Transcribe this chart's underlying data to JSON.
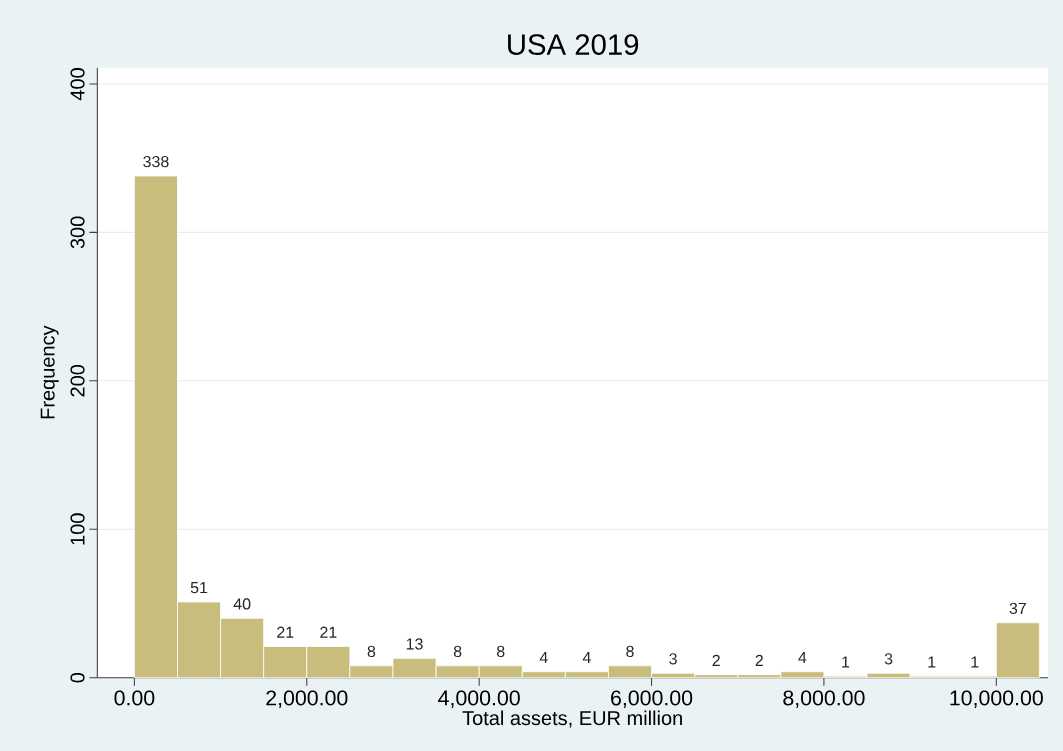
{
  "chart_data": {
    "type": "histogram",
    "title": "USA 2019",
    "xlabel": "Total assets, EUR million",
    "ylabel": "Frequency",
    "bins": [
      0,
      500,
      1000,
      1500,
      2000,
      2500,
      3000,
      3500,
      4000,
      4500,
      5000,
      5500,
      6000,
      6500,
      7000,
      7500,
      8000,
      8500,
      9000,
      9500,
      10000,
      10500
    ],
    "values": [
      338,
      51,
      40,
      21,
      21,
      8,
      13,
      8,
      8,
      4,
      4,
      8,
      3,
      2,
      2,
      4,
      1,
      3,
      1,
      1,
      37
    ],
    "color": "#c8bd7c",
    "data_labels": true,
    "grid": "y",
    "xlim": [
      -430,
      10600
    ],
    "ylim": [
      0,
      411
    ],
    "xticks": [
      {
        "value": 0,
        "label": "0.00"
      },
      {
        "value": 2000,
        "label": "2,000.00"
      },
      {
        "value": 4000,
        "label": "4,000.00"
      },
      {
        "value": 6000,
        "label": "6,000.00"
      },
      {
        "value": 8000,
        "label": "8,000.00"
      },
      {
        "value": 10000,
        "label": "10,000.00"
      }
    ],
    "yticks": [
      0,
      100,
      200,
      300,
      400
    ]
  }
}
